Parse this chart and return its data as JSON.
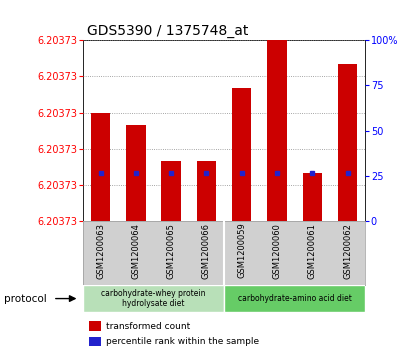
{
  "title": "GDS5390 / 1375748_at",
  "samples": [
    "GSM1200063",
    "GSM1200064",
    "GSM1200065",
    "GSM1200066",
    "GSM1200059",
    "GSM1200060",
    "GSM1200061",
    "GSM1200062"
  ],
  "y_min": 6.203725,
  "y_max": 6.20374,
  "y_ticks": [
    6.203725,
    6.203728,
    6.203731,
    6.203734,
    6.203737,
    6.20374
  ],
  "y_tick_labels": [
    "6.20373",
    "6.20373",
    "6.20373",
    "6.20373",
    "6.20373",
    "6.20373"
  ],
  "bar_bottom": 6.203725,
  "bar_tops": [
    6.203734,
    6.203733,
    6.20373,
    6.20373,
    6.203736,
    6.20374,
    6.203729,
    6.203738
  ],
  "percentile_values": [
    6.203729,
    6.203729,
    6.203729,
    6.203729,
    6.203729,
    6.203729,
    6.203729,
    6.203729
  ],
  "bar_color": "#cc0000",
  "percentile_color": "#2222cc",
  "right_ytick_positions": [
    0,
    25,
    50,
    75,
    100
  ],
  "right_yticklabels": [
    "0",
    "25",
    "50",
    "75",
    "100%"
  ],
  "protocol_groups": [
    {
      "label": "carbohydrate-whey protein\nhydrolysate diet",
      "start": 0,
      "end": 4,
      "color": "#b8e0b8"
    },
    {
      "label": "carbohydrate-amino acid diet",
      "start": 4,
      "end": 8,
      "color": "#66cc66"
    }
  ],
  "protocol_label": "protocol",
  "legend_items": [
    {
      "label": "transformed count",
      "color": "#cc0000"
    },
    {
      "label": "percentile rank within the sample",
      "color": "#2222cc"
    }
  ],
  "bg_color": "#d0d0d0",
  "plot_bg": "#ffffff",
  "grid_color": "#888888",
  "title_fontsize": 10,
  "tick_fontsize": 7,
  "bar_width": 0.55
}
